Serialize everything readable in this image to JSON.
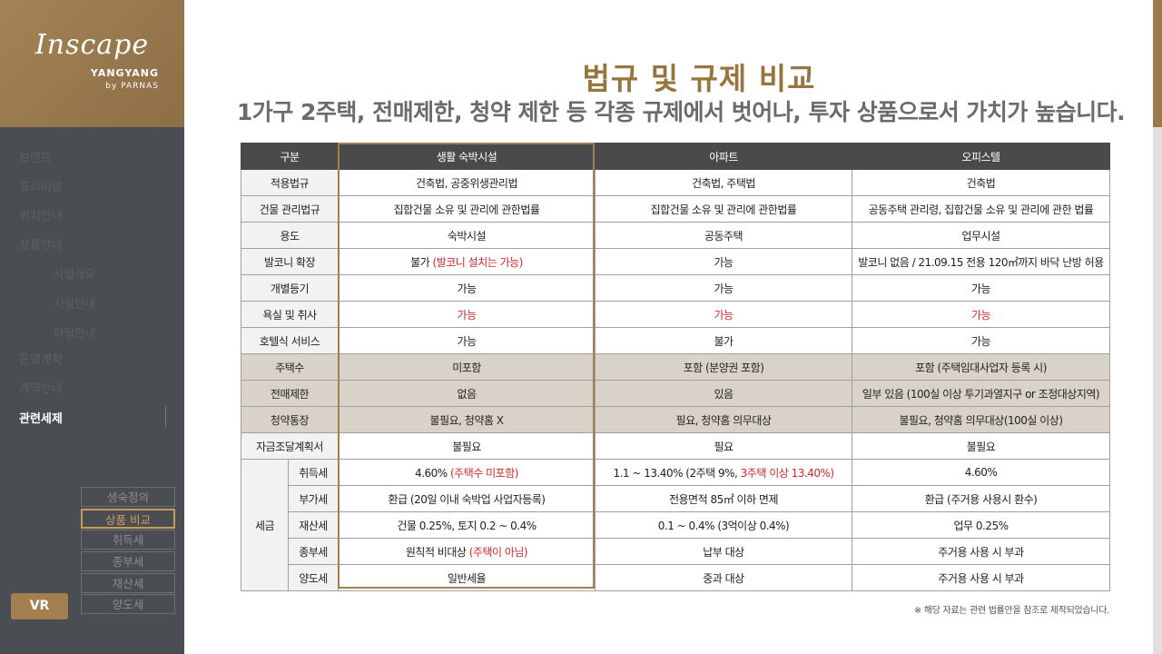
{
  "brand": {
    "logo": "Inscape",
    "line1": "YANGYANG",
    "line2": "by PARNAS"
  },
  "nav": {
    "items": [
      {
        "label": "브랜드"
      },
      {
        "label": "프리미엄"
      },
      {
        "label": "위치안내"
      },
      {
        "label": "상품안내"
      },
      {
        "label": "사업개요"
      },
      {
        "label": "시설안내"
      },
      {
        "label": "타입안내"
      },
      {
        "label": "운영계획"
      },
      {
        "label": "계약안내"
      },
      {
        "label": "관련세제"
      }
    ],
    "active": "관련세제"
  },
  "subnav": {
    "items": [
      "생숙정의",
      "상품 비교",
      "취득세",
      "종부세",
      "재산세",
      "양도세"
    ],
    "active": "상품 비교"
  },
  "vr_label": "VR",
  "title": "법규 및 규제 비교",
  "subtitle": "1가구 2주택, 전매제한, 청약 제한 등 각종 규제에서 벗어나, 투자 상품으로서 가치가 높습니다.",
  "table": {
    "headers": [
      "구분",
      "생활 숙박시설",
      "아파트",
      "오피스텔"
    ],
    "rows": [
      {
        "label": "적용법규",
        "c1": "건축법, 공중위생관리법",
        "c2": "건축법, 주택법",
        "c3": "건축법"
      },
      {
        "label": "건물 관리법규",
        "c1": "집합건물 소유 및 관리에 관한법률",
        "c2": "집합건물 소유 및 관리에 관한법률",
        "c3": "공동주택 관리령, 집합건물 소유 및 관리에 관한 법률"
      },
      {
        "label": "용도",
        "c1": "숙박시설",
        "c2": "공동주택",
        "c3": "업무시설"
      },
      {
        "label": "발코니 확장",
        "c1": "불가 ",
        "c1_red": "(발코니 설치는 가능)",
        "c2": "가능",
        "c3": "발코니 없음 / 21.09.15 전용 120㎡까지 바닥 난방 허용"
      },
      {
        "label": "개별등기",
        "c1": "가능",
        "c2": "가능",
        "c3": "가능"
      },
      {
        "label": "욕실 및 취사",
        "c1_red": "가능",
        "c2_red": "가능",
        "c3_red": "가능"
      },
      {
        "label": "호텔식 서비스",
        "c1": "가능",
        "c2": "불가",
        "c3": "가능"
      },
      {
        "label": "주택수",
        "c1": "미포함",
        "c2": "포함 (분양권 포함)",
        "c3": "포함 (주택임대사업자 등록 시)",
        "shade": true
      },
      {
        "label": "전매제한",
        "c1": "없음",
        "c2": "있음",
        "c3": "일부 있음 (100실 이상 투기과열지구 or 조정대상지역)",
        "shade": true
      },
      {
        "label": "청약통장",
        "c1": "불필요, 청약홈 X",
        "c2": "필요, 청약홈 의무대상",
        "c3": "불필요, 청약홈 의무대상(100실 이상)",
        "shade": true
      },
      {
        "label": "자금조달계획서",
        "c1": "불필요",
        "c2": "필요",
        "c3": "불필요"
      }
    ],
    "tax_group": "세금",
    "tax_rows": [
      {
        "label": "취득세",
        "c1": "4.60% ",
        "c1_red": "(주택수 미포함)",
        "c2": "1.1 ~ 13.40% (2주택 9%, ",
        "c2_red": "3주택 이상 13.40%)",
        "c3": "4.60%"
      },
      {
        "label": "부가세",
        "c1": "환급 (20일 이내 숙박업 사업자등록)",
        "c2": "전용면적 85㎡ 이하 면제",
        "c3": "환급 (주거용 사용시 환수)"
      },
      {
        "label": "재산세",
        "c1": "건물 0.25%, 토지 0.2 ~ 0.4%",
        "c2": "0.1 ~ 0.4% (3억이상 0.4%)",
        "c3": "업무 0.25%"
      },
      {
        "label": "종부세",
        "c1": "원칙적 비대상 ",
        "c1_red": "(주택이 아님)",
        "c2": "납부 대상",
        "c3": "주거용 사용 시 부과"
      },
      {
        "label": "양도세",
        "c1": "일반세율",
        "c2": "중과 대상",
        "c3": "주거용 사용 시 부과"
      }
    ]
  },
  "note": "※ 해당 자료는 관련 법률안을 참조로 제작되었습니다."
}
